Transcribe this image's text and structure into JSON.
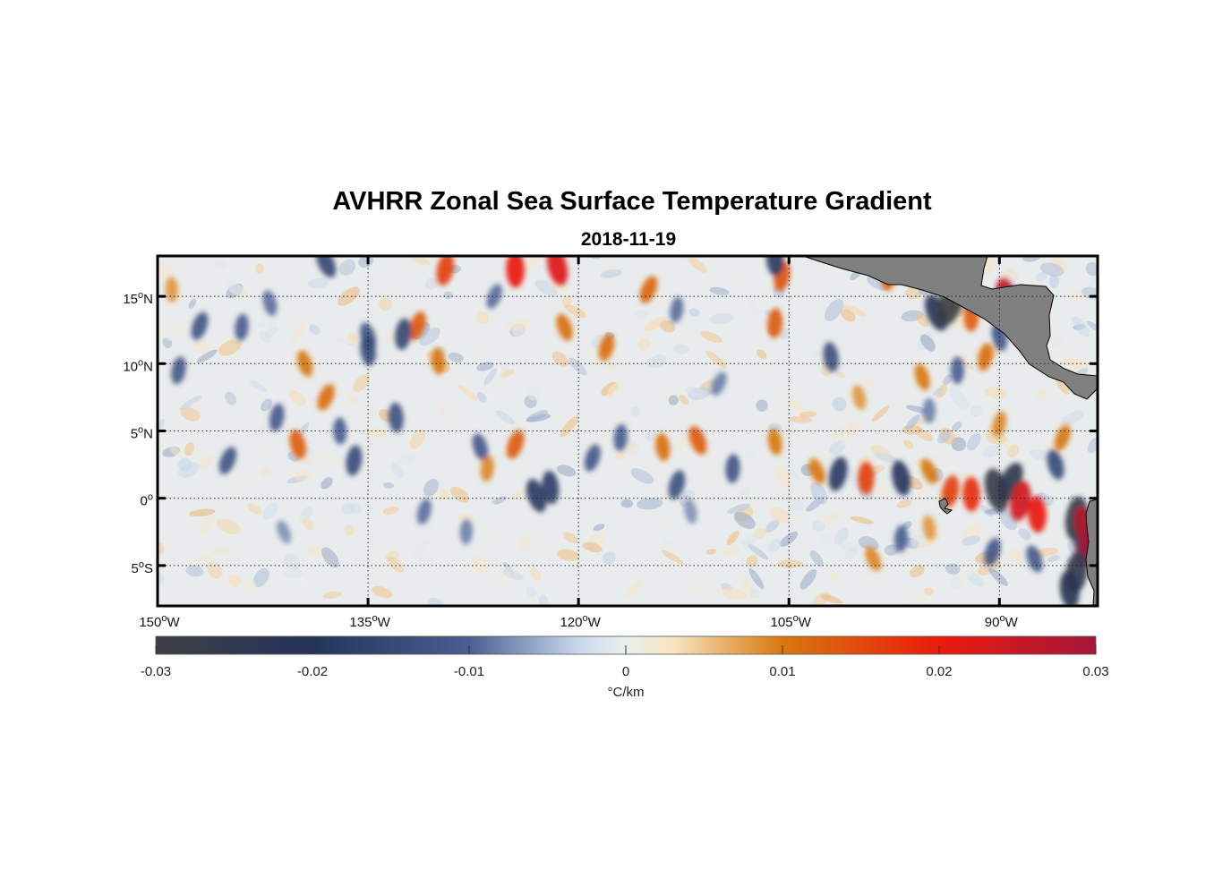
{
  "title": "AVHRR Zonal Sea Surface Temperature Gradient",
  "subtitle": "2018-11-19",
  "map": {
    "lon_range": [
      -150,
      -83
    ],
    "lat_range": [
      -8,
      18
    ],
    "land_color": "#808080",
    "ocean_background": "#e9ecec",
    "x_ticks": [
      {
        "lon": -150,
        "label": "150°W"
      },
      {
        "lon": -135,
        "label": "135°W"
      },
      {
        "lon": -120,
        "label": "120°W"
      },
      {
        "lon": -105,
        "label": "105°W"
      },
      {
        "lon": -90,
        "label": "90°W"
      }
    ],
    "y_ticks": [
      {
        "lat": 15,
        "label": "15°N"
      },
      {
        "lat": 10,
        "label": "10°N"
      },
      {
        "lat": 5,
        "label": "5°N"
      },
      {
        "lat": 0,
        "label": "0°"
      },
      {
        "lat": -5,
        "label": "5°S"
      }
    ],
    "features": [
      {
        "lon": -138,
        "lat": 17.5,
        "v": -0.015
      },
      {
        "lon": -129.5,
        "lat": 17.0,
        "v": 0.016
      },
      {
        "lon": -124.5,
        "lat": 17.0,
        "v": 0.02
      },
      {
        "lon": -121.5,
        "lat": 17.2,
        "v": 0.022
      },
      {
        "lon": -115,
        "lat": 15.5,
        "v": 0.012
      },
      {
        "lon": -105.5,
        "lat": 16.5,
        "v": 0.014
      },
      {
        "lon": -106,
        "lat": 17.8,
        "v": -0.018
      },
      {
        "lon": -135,
        "lat": 12.0,
        "v": -0.012
      },
      {
        "lon": -131.5,
        "lat": 12.8,
        "v": 0.013
      },
      {
        "lon": -132.5,
        "lat": 12.2,
        "v": -0.015
      },
      {
        "lon": -130,
        "lat": 10.2,
        "v": 0.01
      },
      {
        "lon": -139.5,
        "lat": 10.0,
        "v": 0.01
      },
      {
        "lon": -147,
        "lat": 12.8,
        "v": -0.012
      },
      {
        "lon": -144,
        "lat": 12.7,
        "v": -0.01
      },
      {
        "lon": -135,
        "lat": 11.0,
        "v": -0.014
      },
      {
        "lon": -121,
        "lat": 12.7,
        "v": 0.011
      },
      {
        "lon": -118,
        "lat": 11.2,
        "v": 0.011
      },
      {
        "lon": -106,
        "lat": 13.0,
        "v": 0.013
      },
      {
        "lon": -102,
        "lat": 10.5,
        "v": -0.013
      },
      {
        "lon": -94.5,
        "lat": 13.8,
        "v": -0.022
      },
      {
        "lon": -93.5,
        "lat": 14.5,
        "v": -0.03
      },
      {
        "lon": -92.0,
        "lat": 13.5,
        "v": 0.013
      },
      {
        "lon": -89.5,
        "lat": 14.8,
        "v": 0.026
      },
      {
        "lon": -88.5,
        "lat": 13.8,
        "v": 0.02
      },
      {
        "lon": -91,
        "lat": 10.5,
        "v": 0.011
      },
      {
        "lon": -93,
        "lat": 9.5,
        "v": -0.01
      },
      {
        "lon": -90,
        "lat": 12.0,
        "v": -0.012
      },
      {
        "lon": -138,
        "lat": 7.5,
        "v": 0.011
      },
      {
        "lon": -141.5,
        "lat": 6.0,
        "v": -0.011
      },
      {
        "lon": -137,
        "lat": 5.0,
        "v": -0.01
      },
      {
        "lon": -140,
        "lat": 4.0,
        "v": 0.013
      },
      {
        "lon": -145,
        "lat": 2.8,
        "v": -0.012
      },
      {
        "lon": -136,
        "lat": 2.8,
        "v": -0.014
      },
      {
        "lon": -133,
        "lat": 6.0,
        "v": -0.013
      },
      {
        "lon": -127,
        "lat": 3.8,
        "v": -0.011
      },
      {
        "lon": -124.5,
        "lat": 4.0,
        "v": 0.013
      },
      {
        "lon": -126.5,
        "lat": 2.2,
        "v": 0.009
      },
      {
        "lon": -122,
        "lat": 0.8,
        "v": -0.017
      },
      {
        "lon": -123,
        "lat": 0.2,
        "v": -0.018
      },
      {
        "lon": -119,
        "lat": 3.0,
        "v": -0.011
      },
      {
        "lon": -117,
        "lat": 4.5,
        "v": -0.01
      },
      {
        "lon": -114,
        "lat": 3.8,
        "v": 0.011
      },
      {
        "lon": -111.5,
        "lat": 4.3,
        "v": 0.013
      },
      {
        "lon": -113,
        "lat": 1.0,
        "v": -0.013
      },
      {
        "lon": -109,
        "lat": 2.2,
        "v": -0.012
      },
      {
        "lon": -106,
        "lat": 4.2,
        "v": 0.01
      },
      {
        "lon": -103,
        "lat": 2.0,
        "v": 0.01
      },
      {
        "lon": -101.5,
        "lat": 1.8,
        "v": -0.018
      },
      {
        "lon": -99.5,
        "lat": 1.5,
        "v": 0.016
      },
      {
        "lon": -97,
        "lat": 1.5,
        "v": -0.019
      },
      {
        "lon": -95,
        "lat": 2.0,
        "v": 0.01
      },
      {
        "lon": -93.5,
        "lat": 0.5,
        "v": 0.016
      },
      {
        "lon": -92,
        "lat": 0.3,
        "v": 0.018
      },
      {
        "lon": -90.2,
        "lat": 0.6,
        "v": -0.028
      },
      {
        "lon": -89.2,
        "lat": 1.2,
        "v": -0.025
      },
      {
        "lon": -88.5,
        "lat": -0.2,
        "v": 0.024
      },
      {
        "lon": -87.3,
        "lat": -1.2,
        "v": 0.02
      },
      {
        "lon": -86,
        "lat": 2.5,
        "v": -0.014
      },
      {
        "lon": -85.5,
        "lat": 4.5,
        "v": 0.01
      },
      {
        "lon": -84.5,
        "lat": -1.5,
        "v": -0.028
      },
      {
        "lon": -84,
        "lat": -3.0,
        "v": -0.025
      },
      {
        "lon": -83.8,
        "lat": -2.2,
        "v": 0.028
      },
      {
        "lon": -83.5,
        "lat": -3.5,
        "v": 0.03
      },
      {
        "lon": -84.5,
        "lat": -5.5,
        "v": -0.026
      },
      {
        "lon": -85,
        "lat": -6.8,
        "v": -0.022
      },
      {
        "lon": -87.5,
        "lat": -4.5,
        "v": -0.011
      },
      {
        "lon": -90.5,
        "lat": -4.0,
        "v": -0.012
      },
      {
        "lon": -97,
        "lat": -3.0,
        "v": -0.01
      },
      {
        "lon": -95,
        "lat": -2.2,
        "v": 0.008
      },
      {
        "lon": -141,
        "lat": -2.5,
        "v": -0.007
      },
      {
        "lon": -131,
        "lat": -1.0,
        "v": -0.009
      },
      {
        "lon": -128,
        "lat": -2.5,
        "v": -0.008
      },
      {
        "lon": -112,
        "lat": -1.0,
        "v": -0.007
      },
      {
        "lon": -99,
        "lat": -4.5,
        "v": 0.009
      },
      {
        "lon": -90,
        "lat": 5.5,
        "v": 0.009
      },
      {
        "lon": -95,
        "lat": 6.5,
        "v": -0.008
      },
      {
        "lon": -100,
        "lat": 7.5,
        "v": 0.008
      },
      {
        "lon": -110,
        "lat": 8.5,
        "v": -0.008
      },
      {
        "lon": -148.5,
        "lat": 9.5,
        "v": -0.011
      },
      {
        "lon": -149,
        "lat": 15.5,
        "v": 0.008
      },
      {
        "lon": -142,
        "lat": 14.5,
        "v": -0.009
      },
      {
        "lon": -126,
        "lat": 15.0,
        "v": -0.009
      },
      {
        "lon": -113,
        "lat": 14.0,
        "v": -0.009
      },
      {
        "lon": -98,
        "lat": 16.5,
        "v": 0.012
      },
      {
        "lon": -95.5,
        "lat": 9.0,
        "v": 0.01
      }
    ]
  },
  "colorbar": {
    "min": -0.03,
    "max": 0.03,
    "ticks": [
      {
        "value": -0.03,
        "label": "-0.03"
      },
      {
        "value": -0.02,
        "label": "-0.02"
      },
      {
        "value": -0.01,
        "label": "-0.01"
      },
      {
        "value": 0,
        "label": "0"
      },
      {
        "value": 0.01,
        "label": "0.01"
      },
      {
        "value": 0.02,
        "label": "0.02"
      },
      {
        "value": 0.03,
        "label": "0.03"
      }
    ],
    "units": "°C/km",
    "colors": [
      {
        "value": -0.03,
        "color": "#3d3f45"
      },
      {
        "value": -0.02,
        "color": "#243459"
      },
      {
        "value": -0.01,
        "color": "#4a5e91"
      },
      {
        "value": -0.003,
        "color": "#c9d9ec"
      },
      {
        "value": 0,
        "color": "#eaeeee"
      },
      {
        "value": 0.003,
        "color": "#f8e4c2"
      },
      {
        "value": 0.01,
        "color": "#d8780e"
      },
      {
        "value": 0.02,
        "color": "#ec1a0c"
      },
      {
        "value": 0.03,
        "color": "#a3173a"
      }
    ]
  }
}
